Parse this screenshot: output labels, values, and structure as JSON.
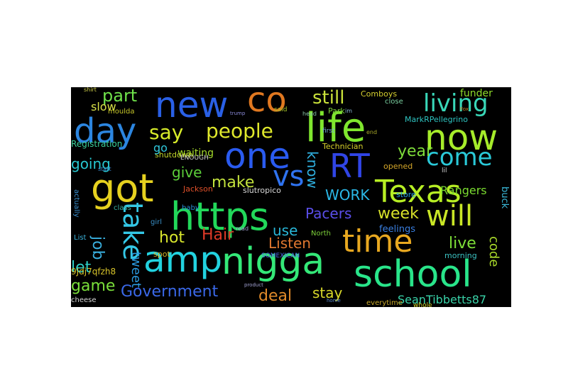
{
  "words": [
    {
      "text": "https",
      "color": "#22d85a"
    },
    {
      "text": "nigga",
      "color": "#34e878"
    },
    {
      "text": "amp",
      "color": "#22d2df"
    },
    {
      "text": "school",
      "color": "#29e58a"
    },
    {
      "text": "life",
      "color": "#7fe62e"
    },
    {
      "text": "now",
      "color": "#a6ec2a"
    },
    {
      "text": "day",
      "color": "#2c86e0"
    },
    {
      "text": "new",
      "color": "#2a60e6"
    },
    {
      "text": "got",
      "color": "#e6d11f"
    },
    {
      "text": "one",
      "color": "#2a5bf0"
    },
    {
      "text": "co",
      "color": "#e07820"
    },
    {
      "text": "RT",
      "color": "#3045e6"
    },
    {
      "text": "Texas",
      "color": "#b7ee24"
    },
    {
      "text": "time",
      "color": "#e8a820"
    },
    {
      "text": "take",
      "color": "#34c7e6"
    },
    {
      "text": "will",
      "color": "#c9e626"
    },
    {
      "text": "vs",
      "color": "#2f73f0"
    },
    {
      "text": "living",
      "color": "#39d7b8"
    },
    {
      "text": "come",
      "color": "#2ac9d8"
    },
    {
      "text": "people",
      "color": "#dfe82c"
    },
    {
      "text": "say",
      "color": "#d8ec2a"
    },
    {
      "text": "still",
      "color": "#c9e13a"
    },
    {
      "text": "part",
      "color": "#6fe04a"
    },
    {
      "text": "going",
      "color": "#27c7d0"
    },
    {
      "text": "give",
      "color": "#5ccf3a"
    },
    {
      "text": "make",
      "color": "#c2e13c"
    },
    {
      "text": "know",
      "color": "#2fb0e0"
    },
    {
      "text": "year",
      "color": "#7edc3a"
    },
    {
      "text": "Government",
      "color": "#3a68e8"
    },
    {
      "text": "Pacers",
      "color": "#5a4ee8"
    },
    {
      "text": "Hair",
      "color": "#e03a28"
    },
    {
      "text": "hot",
      "color": "#d8e62c"
    },
    {
      "text": "week",
      "color": "#d8e22a"
    },
    {
      "text": "Listen",
      "color": "#e07830"
    },
    {
      "text": "live",
      "color": "#7ee038"
    },
    {
      "text": "job",
      "color": "#3ab0e0"
    },
    {
      "text": "game",
      "color": "#7adf3a"
    },
    {
      "text": "deal",
      "color": "#e08a2a"
    },
    {
      "text": "stay",
      "color": "#d8d82a"
    },
    {
      "text": "use",
      "color": "#29b7d8"
    },
    {
      "text": "let",
      "color": "#2dd0c8"
    },
    {
      "text": "WORK",
      "color": "#2bb8e8"
    },
    {
      "text": "Rangers",
      "color": "#7bdc30"
    },
    {
      "text": "tweet",
      "color": "#2b9ae0"
    },
    {
      "text": "code",
      "color": "#a8d82a"
    },
    {
      "text": "SeanTibbetts87",
      "color": "#39d2a8"
    },
    {
      "text": "feelings",
      "color": "#3a7fe0"
    },
    {
      "text": "funder",
      "color": "#8edc2a"
    },
    {
      "text": "MarkRPellegrino",
      "color": "#2ec3c0"
    },
    {
      "text": "waiting",
      "color": "#a2d82a"
    },
    {
      "text": "shutdown",
      "color": "#c2d62a"
    },
    {
      "text": "Registration",
      "color": "#3acf9a"
    },
    {
      "text": "slow",
      "color": "#d8e048"
    },
    {
      "text": "go",
      "color": "#2fc6da"
    },
    {
      "text": "Technician",
      "color": "#d6d02a"
    },
    {
      "text": "Comboys",
      "color": "#d6d030"
    },
    {
      "text": "Park",
      "color": "#7ccf3a"
    },
    {
      "text": "store",
      "color": "#2a9fe0"
    },
    {
      "text": "opened",
      "color": "#d6a82a"
    },
    {
      "text": "buck",
      "color": "#3ab8d8"
    },
    {
      "text": "9Jdj7qfzh8",
      "color": "#d8c42a"
    },
    {
      "text": "Jackson",
      "color": "#e0502a"
    },
    {
      "text": "slutropico",
      "color": "#d8d8d8"
    },
    {
      "text": "baby",
      "color": "#2a90d8"
    },
    {
      "text": "ENOUGH",
      "color": "#d8d8d8"
    },
    {
      "text": "North",
      "color": "#7ccf3a"
    },
    {
      "text": "SOMEXICAN",
      "color": "#4a6ae8"
    },
    {
      "text": "cheese",
      "color": "#d8d8d8"
    },
    {
      "text": "morning",
      "color": "#3ac0c0"
    },
    {
      "text": "class",
      "color": "#3ab0a0"
    },
    {
      "text": "girl",
      "color": "#3a90c8"
    },
    {
      "text": "spot",
      "color": "#d6b82a"
    },
    {
      "text": "actually",
      "color": "#3a90d0"
    },
    {
      "text": "List",
      "color": "#3ab0d8"
    },
    {
      "text": "moulda",
      "color": "#c8c82a"
    },
    {
      "text": "said",
      "color": "#a8c82a"
    },
    {
      "text": "trump",
      "color": "#8a8ad8"
    },
    {
      "text": "first",
      "color": "#7ab0d8"
    },
    {
      "text": "whole",
      "color": "#d0d02a"
    },
    {
      "text": "close",
      "color": "#7ad0a0"
    },
    {
      "text": "lil",
      "color": "#d0d0d0"
    },
    {
      "text": "everytime",
      "color": "#c8a82a"
    },
    {
      "text": "head",
      "color": "#8ac8a8"
    },
    {
      "text": "read",
      "color": "#a0a0d0"
    },
    {
      "text": "shirt",
      "color": "#d0d04a"
    },
    {
      "text": "start",
      "color": "#3a8ad0"
    },
    {
      "text": "end",
      "color": "#a8a82a"
    },
    {
      "text": "im",
      "color": "#8ab8d8"
    },
    {
      "text": "Fox",
      "color": "#d08a2a"
    },
    {
      "text": "home",
      "color": "#5a8ad0"
    },
    {
      "text": "product",
      "color": "#a0a0d0"
    }
  ]
}
